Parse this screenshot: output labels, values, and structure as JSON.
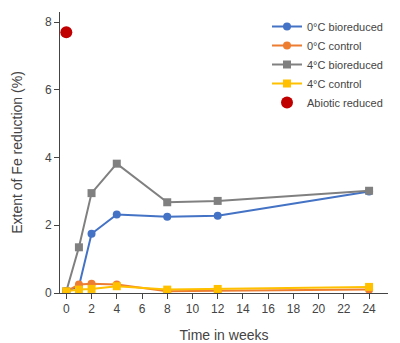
{
  "chart_data": {
    "type": "line",
    "xlabel": "Time in weeks",
    "ylabel": "Extent of Fe reduction (%)",
    "series": [
      {
        "name": "0°C bioreduced",
        "color": "#4472C4",
        "marker": "circle",
        "line_style": "solid",
        "x": [
          0,
          1,
          2,
          4,
          8,
          12,
          24
        ],
        "values": [
          0.05,
          0.2,
          1.75,
          2.32,
          2.25,
          2.28,
          3.0
        ]
      },
      {
        "name": "0°C control",
        "color": "#ED7D31",
        "marker": "circle",
        "line_style": "solid",
        "x": [
          0,
          1,
          2,
          4,
          8,
          12,
          24
        ],
        "values": [
          0.05,
          0.25,
          0.27,
          0.25,
          0.05,
          0.07,
          0.1
        ]
      },
      {
        "name": "4°C bioreduced",
        "color": "#808080",
        "marker": "square",
        "line_style": "solid",
        "x": [
          0,
          1,
          2,
          4,
          8,
          12,
          24
        ],
        "values": [
          0.05,
          1.35,
          2.95,
          3.82,
          2.68,
          2.72,
          3.02
        ]
      },
      {
        "name": "4°C control",
        "color": "#FFC000",
        "marker": "square",
        "line_style": "solid",
        "x": [
          0,
          1,
          2,
          4,
          8,
          12,
          24
        ],
        "values": [
          0.05,
          0.1,
          0.12,
          0.2,
          0.1,
          0.12,
          0.18
        ]
      },
      {
        "name": "Abiotic reduced",
        "color": "#C00000",
        "marker": "circle",
        "line_style": "none",
        "x": [
          0
        ],
        "values": [
          7.7
        ]
      }
    ],
    "xlim": [
      -0.5,
      25.5
    ],
    "ylim": [
      0,
      8.3
    ],
    "xticks": [
      0,
      2,
      4,
      6,
      8,
      10,
      12,
      14,
      16,
      18,
      20,
      22,
      24
    ],
    "yticks": [
      0,
      2,
      4,
      6,
      8
    ],
    "legend": "upper right",
    "grid": false
  }
}
